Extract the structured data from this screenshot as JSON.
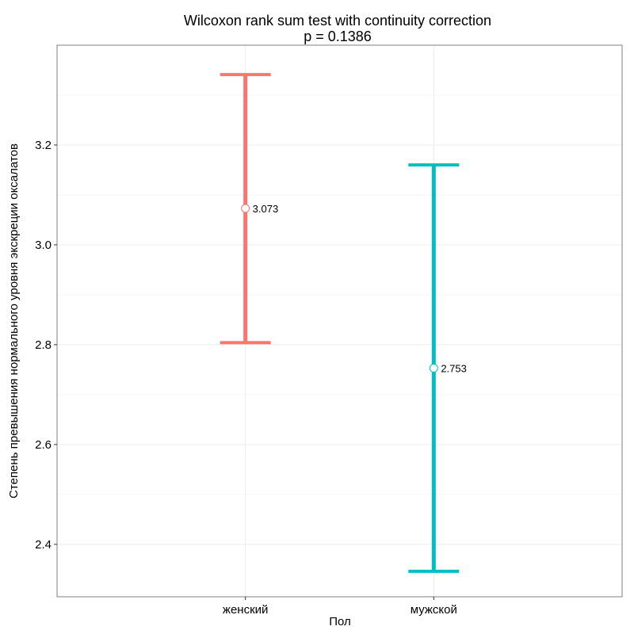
{
  "chart_data": {
    "type": "errorbar",
    "title": "Wilcoxon rank sum test with continuity correction",
    "subtitle": "p = 0.1386",
    "xlabel": "Пол",
    "ylabel": "Степень превышения нормального уровня экскреции оксалатов",
    "categories": [
      "женский",
      "мужской"
    ],
    "series": [
      {
        "category": "женский",
        "center": 3.073,
        "lower": 2.804,
        "upper": 3.341,
        "label": "3.073",
        "color": "#F8766D"
      },
      {
        "category": "мужской",
        "center": 2.753,
        "lower": 2.346,
        "upper": 3.16,
        "label": "2.753",
        "color": "#00BFC4"
      }
    ],
    "y_ticks": [
      2.4,
      2.6,
      2.8,
      3.0,
      3.2
    ],
    "y_tick_labels": [
      "2.4",
      "2.6",
      "2.8",
      "3.0",
      "3.2"
    ],
    "ylim": [
      2.295,
      3.4
    ],
    "grid": true,
    "legend": "none"
  }
}
